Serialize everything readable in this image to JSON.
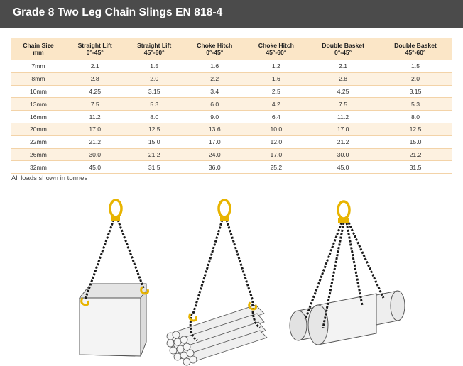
{
  "header": {
    "title": "Grade 8 Two Leg Chain Slings EN 818-4"
  },
  "table": {
    "columns": [
      {
        "line1": "Chain Size",
        "line2": "mm"
      },
      {
        "line1": "Straight Lift",
        "line2": "0°-45°"
      },
      {
        "line1": "Straight Lift",
        "line2": "45°-60°"
      },
      {
        "line1": "Choke Hitch",
        "line2": "0°-45°"
      },
      {
        "line1": "Choke Hitch",
        "line2": "45°-60°"
      },
      {
        "line1": "Double Basket",
        "line2": "0°-45°"
      },
      {
        "line1": "Double Basket",
        "line2": "45°-60°"
      }
    ],
    "rows": [
      [
        "7mm",
        "2.1",
        "1.5",
        "1.6",
        "1.2",
        "2.1",
        "1.5"
      ],
      [
        "8mm",
        "2.8",
        "2.0",
        "2.2",
        "1.6",
        "2.8",
        "2.0"
      ],
      [
        "10mm",
        "4.25",
        "3.15",
        "3.4",
        "2.5",
        "4.25",
        "3.15"
      ],
      [
        "13mm",
        "7.5",
        "5.3",
        "6.0",
        "4.2",
        "7.5",
        "5.3"
      ],
      [
        "16mm",
        "11.2",
        "8.0",
        "9.0",
        "6.4",
        "11.2",
        "8.0"
      ],
      [
        "20mm",
        "17.0",
        "12.5",
        "13.6",
        "10.0",
        "17.0",
        "12.5"
      ],
      [
        "22mm",
        "21.2",
        "15.0",
        "17.0",
        "12.0",
        "21.2",
        "15.0"
      ],
      [
        "26mm",
        "30.0",
        "21.2",
        "24.0",
        "17.0",
        "30.0",
        "21.2"
      ],
      [
        "32mm",
        "45.0",
        "31.5",
        "36.0",
        "25.2",
        "45.0",
        "31.5"
      ]
    ]
  },
  "note": "All loads shown in tonnes",
  "colors": {
    "header_bg": "#4b4b4b",
    "row_alt": "#fdf1e0",
    "head_bg": "#fbe6c7",
    "hook": "#e8b400",
    "chain": "#1a1a1a"
  },
  "illustrations": [
    "straight-lift-illustration",
    "choke-hitch-illustration",
    "double-basket-illustration"
  ]
}
